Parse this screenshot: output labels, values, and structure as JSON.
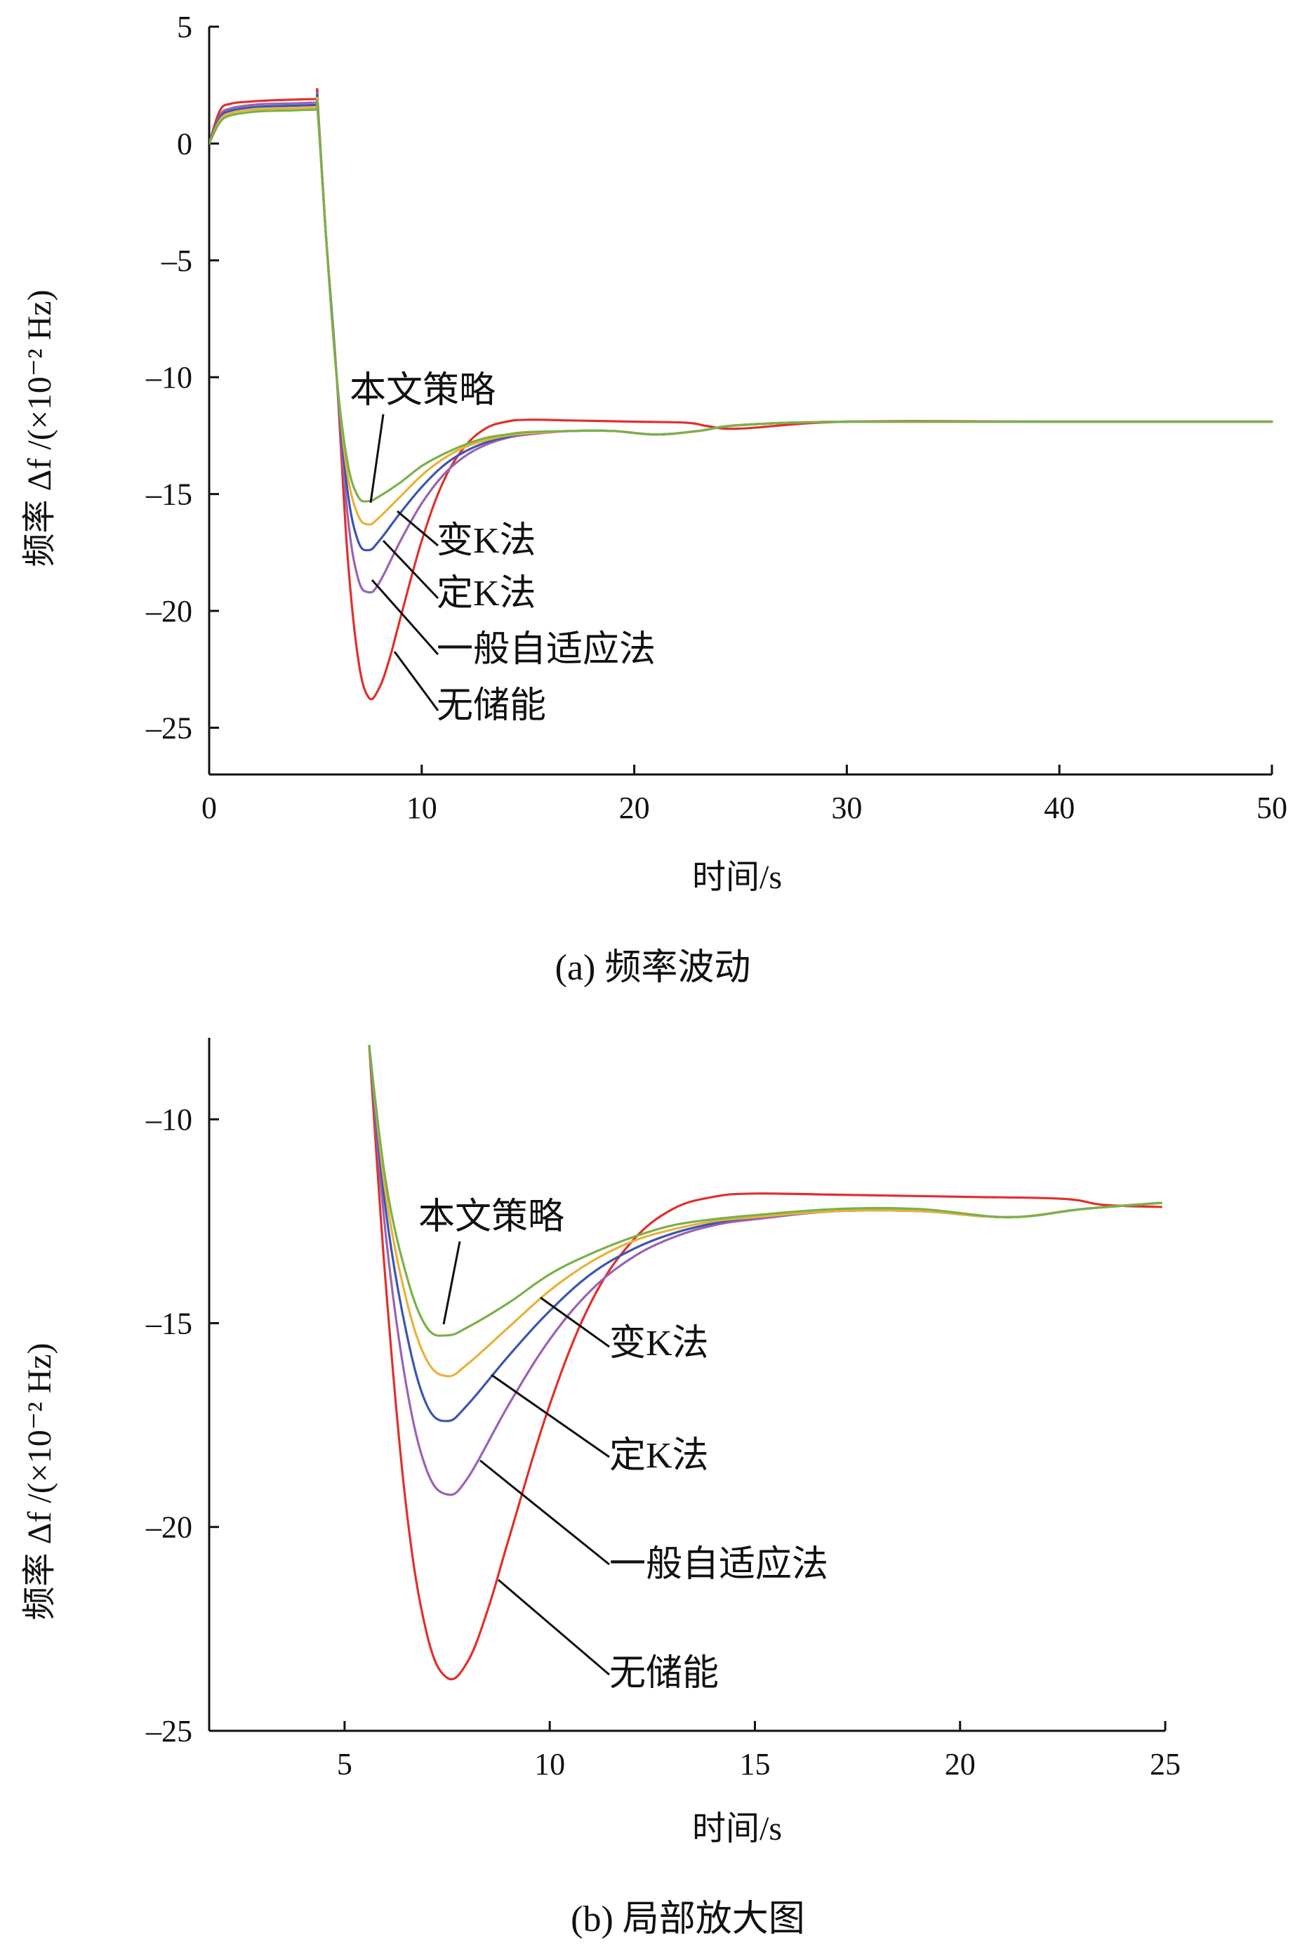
{
  "colors": {
    "本文策略": "#7bb04a",
    "变K法": "#e8b23a",
    "定K法": "#3d55b0",
    "一般自适应法": "#9a62b4",
    "无储能": "#e0302c"
  },
  "chart_data": [
    {
      "type": "line",
      "title": "",
      "caption": "(a) 频率波动",
      "xlabel": "时间/s",
      "ylabel": "频率 Δf /(×10⁻² Hz)",
      "xlim": [
        0,
        50
      ],
      "ylim": [
        -27,
        5
      ],
      "xticks": [
        0,
        10,
        20,
        30,
        40,
        50
      ],
      "yticks": [
        5,
        0,
        -5,
        -10,
        -15,
        -20,
        -25
      ],
      "xtick_labels": [
        "0",
        "10",
        "20",
        "30",
        "40",
        "50"
      ],
      "ytick_labels": [
        "5",
        "0",
        "–5",
        "–10",
        "–15",
        "–20",
        "–25"
      ],
      "grid": false,
      "series": [
        {
          "name": "本文策略",
          "x": [
            0,
            0.5,
            1,
            2,
            3,
            4,
            5,
            5.1,
            5.5,
            6,
            6.5,
            7,
            7.5,
            8,
            9,
            10,
            11,
            12,
            13,
            14,
            15,
            17,
            19,
            21,
            23,
            25,
            30,
            40,
            50
          ],
          "y": [
            0,
            0.9,
            1.2,
            1.35,
            1.4,
            1.42,
            1.45,
            1.4,
            -4,
            -10,
            -13.6,
            -15.1,
            -15.3,
            -15.1,
            -14.5,
            -13.8,
            -13.3,
            -12.9,
            -12.6,
            -12.45,
            -12.35,
            -12.3,
            -12.3,
            -12.45,
            -12.3,
            -12.05,
            -11.9,
            -11.9,
            -11.9
          ]
        },
        {
          "name": "变K法",
          "x": [
            0,
            0.5,
            1,
            2,
            3,
            4,
            5,
            5.1,
            5.5,
            6,
            6.5,
            7,
            7.5,
            8,
            9,
            10,
            11,
            12,
            13,
            14,
            15,
            17,
            19,
            21,
            23,
            25,
            30,
            40,
            50
          ],
          "y": [
            0,
            1.0,
            1.3,
            1.45,
            1.5,
            1.52,
            1.55,
            1.5,
            -4,
            -10,
            -14.1,
            -15.9,
            -16.3,
            -16.0,
            -15.1,
            -14.2,
            -13.5,
            -13.0,
            -12.7,
            -12.5,
            -12.4,
            -12.3,
            -12.3,
            -12.45,
            -12.3,
            -12.05,
            -11.9,
            -11.9,
            -11.9
          ]
        },
        {
          "name": "定K法",
          "x": [
            0,
            0.5,
            1,
            2,
            3,
            4,
            5,
            5.1,
            5.5,
            6,
            6.5,
            7,
            7.5,
            8,
            9,
            10,
            11,
            12,
            13,
            14,
            15,
            17,
            19,
            21,
            23,
            25,
            30,
            40,
            50
          ],
          "y": [
            0,
            1.1,
            1.4,
            1.55,
            1.6,
            1.62,
            1.65,
            1.6,
            -4,
            -10,
            -14.8,
            -17.0,
            -17.4,
            -17.0,
            -15.8,
            -14.7,
            -13.8,
            -13.2,
            -12.8,
            -12.55,
            -12.4,
            -12.3,
            -12.3,
            -12.45,
            -12.3,
            -12.05,
            -11.9,
            -11.9,
            -11.9
          ]
        },
        {
          "name": "一般自适应法",
          "x": [
            0,
            0.5,
            1,
            2,
            3,
            4,
            5,
            5.1,
            5.5,
            6,
            6.5,
            7,
            7.5,
            8,
            9,
            10,
            11,
            12,
            13,
            14,
            15,
            17,
            19,
            21,
            23,
            25,
            30,
            40,
            50
          ],
          "y": [
            0,
            1.2,
            1.5,
            1.65,
            1.7,
            1.72,
            1.75,
            1.7,
            -4,
            -10,
            -15.8,
            -18.6,
            -19.2,
            -18.8,
            -17.0,
            -15.4,
            -14.2,
            -13.4,
            -12.9,
            -12.6,
            -12.45,
            -12.3,
            -12.3,
            -12.45,
            -12.3,
            -12.05,
            -11.9,
            -11.9,
            -11.9
          ]
        },
        {
          "name": "无储能",
          "x": [
            0,
            0.5,
            1,
            2,
            3,
            4,
            5,
            5.1,
            5.5,
            6,
            6.5,
            7,
            7.5,
            8,
            8.5,
            9,
            10,
            11,
            12,
            13,
            14,
            15,
            17,
            20,
            22.5,
            23.5,
            25,
            30,
            40,
            50
          ],
          "y": [
            0,
            1.4,
            1.7,
            1.8,
            1.85,
            1.88,
            1.9,
            1.85,
            -4,
            -10,
            -17.5,
            -22.0,
            -23.7,
            -23.3,
            -22.0,
            -20.3,
            -17.0,
            -14.5,
            -13.0,
            -12.2,
            -11.9,
            -11.82,
            -11.85,
            -11.9,
            -11.95,
            -12.1,
            -12.2,
            -11.9,
            -11.9,
            -11.9
          ]
        }
      ],
      "annotations": [
        {
          "text": "本文策略",
          "series": "本文策略"
        },
        {
          "text": "变K法",
          "series": "变K法"
        },
        {
          "text": "定K法",
          "series": "定K法"
        },
        {
          "text": "一般自适应法",
          "series": "一般自适应法"
        },
        {
          "text": "无储能",
          "series": "无储能"
        }
      ]
    },
    {
      "type": "line",
      "title": "",
      "caption": "(b) 局部放大图",
      "xlabel": "时间/s",
      "ylabel": "频率 Δf /(×10⁻² Hz)",
      "xlim": [
        1.7,
        25
      ],
      "ylim": [
        -25,
        -8
      ],
      "xticks": [
        5,
        10,
        15,
        20,
        25
      ],
      "yticks": [
        -10,
        -15,
        -20,
        -25
      ],
      "xtick_labels": [
        "5",
        "10",
        "15",
        "20",
        "25"
      ],
      "ytick_labels": [
        "–10",
        "–15",
        "–20",
        "–25"
      ],
      "grid": false,
      "series": [
        {
          "name": "本文策略",
          "x": [
            5.6,
            6,
            6.5,
            7,
            7.5,
            8,
            9,
            10,
            11,
            12,
            13,
            14,
            15,
            17,
            19,
            21.2,
            23,
            24.9
          ],
          "y": [
            -8.2,
            -11.5,
            -13.8,
            -15.1,
            -15.3,
            -15.1,
            -14.5,
            -13.8,
            -13.3,
            -12.9,
            -12.6,
            -12.45,
            -12.35,
            -12.2,
            -12.2,
            -12.4,
            -12.2,
            -12.05
          ]
        },
        {
          "name": "变K法",
          "x": [
            5.6,
            6,
            6.5,
            7,
            7.5,
            8,
            9,
            10,
            11,
            12,
            13,
            14,
            15,
            17,
            19,
            21.2,
            23,
            24.9
          ],
          "y": [
            -8.2,
            -11.8,
            -14.4,
            -15.9,
            -16.3,
            -16.0,
            -15.1,
            -14.2,
            -13.5,
            -13.0,
            -12.7,
            -12.5,
            -12.4,
            -12.25,
            -12.25,
            -12.4,
            -12.2,
            -12.05
          ]
        },
        {
          "name": "定K法",
          "x": [
            5.6,
            6,
            6.5,
            7,
            7.5,
            8,
            9,
            10,
            11,
            12,
            13,
            14,
            15,
            17,
            19,
            21.2,
            23,
            24.9
          ],
          "y": [
            -8.2,
            -12.2,
            -15.2,
            -17.0,
            -17.4,
            -17.0,
            -15.8,
            -14.7,
            -13.8,
            -13.2,
            -12.8,
            -12.55,
            -12.4,
            -12.25,
            -12.25,
            -12.4,
            -12.2,
            -12.05
          ]
        },
        {
          "name": "一般自适应法",
          "x": [
            5.6,
            6,
            6.5,
            7,
            7.5,
            8,
            9,
            10,
            11,
            12,
            13,
            14,
            15,
            17,
            19,
            21.2,
            23,
            24.9
          ],
          "y": [
            -8.2,
            -12.8,
            -16.5,
            -18.6,
            -19.2,
            -18.8,
            -17.0,
            -15.4,
            -14.2,
            -13.4,
            -12.9,
            -12.6,
            -12.45,
            -12.25,
            -12.25,
            -12.4,
            -12.2,
            -12.05
          ]
        },
        {
          "name": "无储能",
          "x": [
            5.6,
            6,
            6.5,
            7,
            7.5,
            8,
            8.5,
            9,
            10,
            11,
            12,
            13,
            14,
            15,
            17,
            20,
            22.5,
            23.5,
            24.9
          ],
          "y": [
            -8.2,
            -14.0,
            -19.5,
            -22.6,
            -23.7,
            -23.3,
            -22.0,
            -20.3,
            -17.0,
            -14.5,
            -13.0,
            -12.2,
            -11.9,
            -11.82,
            -11.85,
            -11.9,
            -11.95,
            -12.1,
            -12.15
          ]
        }
      ],
      "annotations": [
        {
          "text": "本文策略",
          "series": "本文策略"
        },
        {
          "text": "变K法",
          "series": "变K法"
        },
        {
          "text": "定K法",
          "series": "定K法"
        },
        {
          "text": "一般自适应法",
          "series": "一般自适应法"
        },
        {
          "text": "无储能",
          "series": "无储能"
        }
      ]
    }
  ]
}
